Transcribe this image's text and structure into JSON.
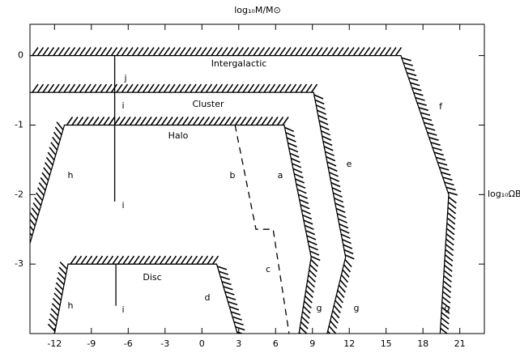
{
  "chart_data": {
    "type": "line",
    "x_label": "log₁₀M/M⊙",
    "y_label": "log₁₀ΩB",
    "xlim": [
      -14,
      23
    ],
    "ylim": [
      -4,
      0.45
    ],
    "xticks": [
      -12,
      -9,
      -6,
      -3,
      0,
      3,
      6,
      9,
      12,
      15,
      18,
      21
    ],
    "yticks": [
      0,
      -1,
      -2,
      -3
    ],
    "color": "#000000",
    "series": [
      {
        "style": "hatched",
        "x": [
          -14,
          16.2,
          20.1,
          19.4
        ],
        "values": [
          0,
          0,
          -2,
          -4
        ]
      },
      {
        "style": "hatched",
        "x": [
          -14,
          9.1,
          11.7,
          10.2
        ],
        "values": [
          -0.53,
          -0.53,
          -2.9,
          -4
        ]
      },
      {
        "style": "hatched",
        "x": [
          -14,
          -11.2,
          6.7,
          8.9,
          7.9
        ],
        "values": [
          -2.7,
          -1,
          -1,
          -2.9,
          -4
        ]
      },
      {
        "style": "hatched",
        "x": [
          -12,
          -10.9,
          1.2,
          2.9
        ],
        "values": [
          -4,
          -3,
          -3,
          -4
        ]
      },
      {
        "style": "dashed",
        "x": [
          2.7,
          4.4,
          5.8,
          7.1
        ],
        "values": [
          -1,
          -2.5,
          -2.5,
          -4
        ]
      },
      {
        "style": "solid",
        "x": [
          -7.1,
          -7.1
        ],
        "values": [
          0,
          -2.1
        ]
      },
      {
        "style": "solid",
        "x": [
          -7.0,
          -7.0
        ],
        "values": [
          -3,
          -3.6
        ]
      }
    ],
    "annotations": [
      "Intergalactic",
      "j",
      "i",
      "Cluster",
      "Halo",
      "h",
      "b",
      "a",
      "e",
      "f",
      "i",
      "c",
      "Disc",
      "d",
      "h",
      "i",
      "g",
      "g",
      "g"
    ]
  }
}
